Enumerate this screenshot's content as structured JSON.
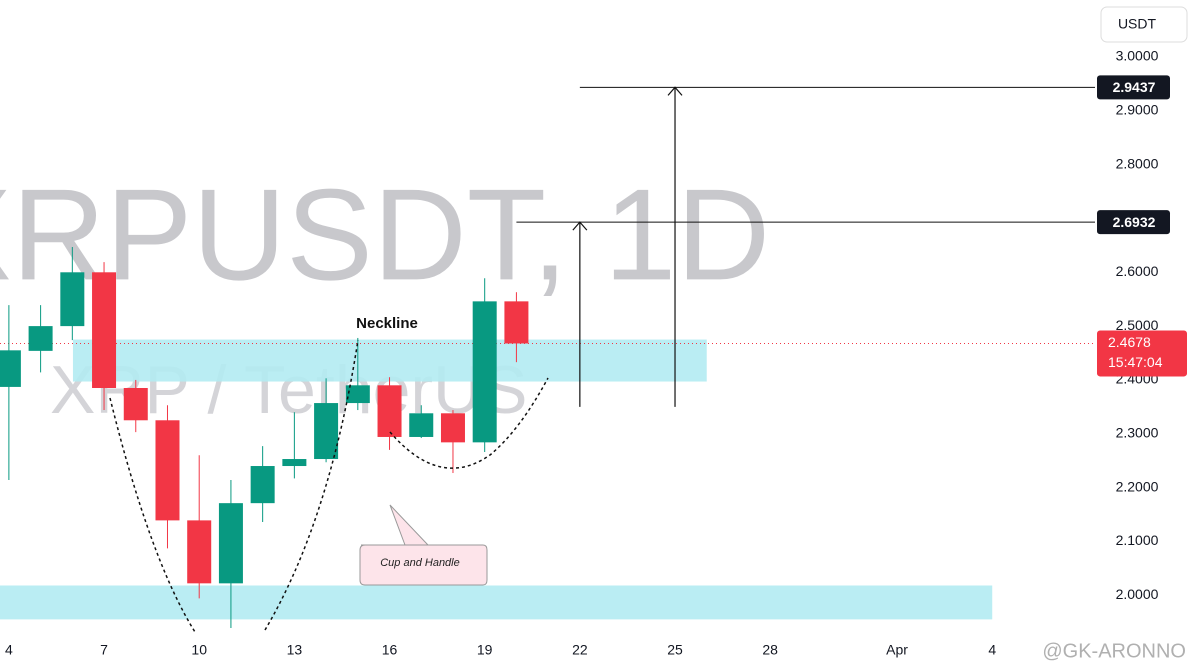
{
  "chart_data": {
    "type": "candlestick",
    "title": "XRPUSDT, 1D",
    "subtitle": "XRP / TetherUS",
    "currency": "USDT",
    "x": [
      4,
      5,
      6,
      7,
      8,
      9,
      10,
      11,
      12,
      13,
      14,
      15,
      16,
      17,
      18,
      19,
      20
    ],
    "open": [
      2.387,
      2.454,
      2.5,
      2.6,
      2.385,
      2.325,
      2.139,
      2.022,
      2.171,
      2.24,
      2.253,
      2.357,
      2.39,
      2.294,
      2.338,
      2.284,
      2.546
    ],
    "high": [
      2.539,
      2.539,
      2.647,
      2.619,
      2.4,
      2.353,
      2.26,
      2.214,
      2.277,
      2.34,
      2.403,
      2.478,
      2.405,
      2.353,
      2.344,
      2.589,
      2.563
    ],
    "low": [
      2.214,
      2.414,
      2.474,
      2.344,
      2.303,
      2.087,
      1.994,
      1.939,
      2.136,
      2.217,
      2.247,
      2.344,
      2.27,
      2.292,
      2.227,
      2.266,
      2.433
    ],
    "close": [
      2.455,
      2.5,
      2.6,
      2.385,
      2.325,
      2.139,
      2.022,
      2.171,
      2.24,
      2.253,
      2.357,
      2.39,
      2.294,
      2.338,
      2.284,
      2.546,
      2.4678
    ],
    "up_color": "#089981",
    "down_color": "#f23645",
    "xlim": [
      3.72,
      38.24
    ],
    "ylim": [
      1.926,
      3.106
    ],
    "xticks": [
      4,
      7,
      10,
      13,
      16,
      19,
      22,
      25,
      28,
      {
        "value": 32,
        "label": "Apr"
      },
      {
        "value": 35,
        "label": "4"
      }
    ],
    "yticks": [
      {
        "value": 2,
        "label": "2.0000"
      },
      {
        "value": 2.1,
        "label": "2.1000"
      },
      {
        "value": 2.2,
        "label": "2.2000"
      },
      {
        "value": 2.3,
        "label": "2.3000"
      },
      {
        "value": 2.4,
        "label": "2.4000"
      },
      {
        "value": 2.5,
        "label": "2.5000"
      },
      {
        "value": 2.6,
        "label": "2.6000"
      },
      {
        "value": 2.7,
        "label": "2.7000"
      },
      {
        "value": 2.8,
        "label": "2.8000"
      },
      {
        "value": 2.9,
        "label": "2.9000"
      },
      {
        "value": 3,
        "label": "3.0000"
      }
    ],
    "zones": [
      {
        "x": [
          6.02,
          26
        ],
        "y": [
          2.397,
          2.475
        ]
      },
      {
        "x": [
          3.72,
          35
        ],
        "y": [
          1.955,
          2.018
        ]
      }
    ],
    "targets": [
      {
        "price": 2.6932,
        "from": 20,
        "arrow_x": 22,
        "arrow_base": 2.35
      },
      {
        "price": 2.9437,
        "from": 22,
        "arrow_x": 25,
        "arrow_base": 2.35
      }
    ],
    "current_price": 2.4678,
    "countdown": "15:47:04",
    "annotations": {
      "neckline": "Neckline",
      "pattern": "Cup and Handle"
    },
    "watermark": "@GK-ARONNO"
  }
}
